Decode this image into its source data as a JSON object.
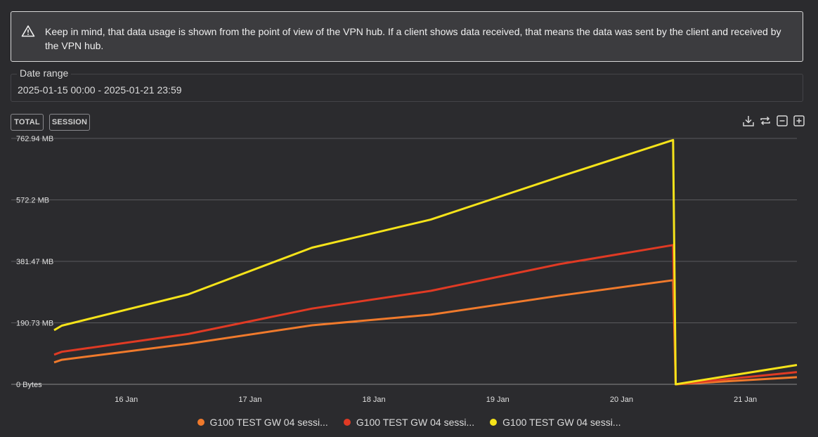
{
  "notice": {
    "text": "Keep in mind, that data usage is shown from the point of view of the VPN hub. If a client shows data received, that means the data was sent by the client and received by the VPN hub.",
    "icon": "warning-icon"
  },
  "date_range": {
    "label": "Date range",
    "value": "2025-01-15 00:00 - 2025-01-21 23:59"
  },
  "toolbar": {
    "total_label": "TOTAL",
    "session_label": "SESSION",
    "icons": [
      "download-icon",
      "reset-icon",
      "zoom-out-icon",
      "zoom-in-icon"
    ]
  },
  "chart_data": {
    "type": "line",
    "title": "",
    "xlabel": "",
    "ylabel": "",
    "x_ticks": [
      "16 Jan",
      "17 Jan",
      "18 Jan",
      "19 Jan",
      "20 Jan",
      "21 Jan"
    ],
    "y_ticks": [
      "0 Bytes",
      "190.73 MB",
      "381.47 MB",
      "572.2 MB",
      "762.94 MB"
    ],
    "ylim": [
      0,
      762.94
    ],
    "y_unit": "MB",
    "xlim": [
      "2025-01-15 10:00",
      "2025-01-21 10:00"
    ],
    "grid": true,
    "legend_position": "bottom",
    "series": [
      {
        "name": "G100 TEST GW 04 sessi...",
        "color": "#f07a2c",
        "points": [
          [
            "2025-01-15 10:00",
            68
          ],
          [
            "2025-01-15 11:30",
            76
          ],
          [
            "2025-01-16 12:00",
            126
          ],
          [
            "2025-01-17 12:00",
            183
          ],
          [
            "2025-01-18 11:00",
            216
          ],
          [
            "2025-01-19 12:00",
            275
          ],
          [
            "2025-01-20 10:00",
            323
          ],
          [
            "2025-01-20 10:30",
            0
          ],
          [
            "2025-01-21 10:00",
            22
          ]
        ]
      },
      {
        "name": "G100 TEST GW 04 sessi...",
        "color": "#e03a24",
        "points": [
          [
            "2025-01-15 10:00",
            92
          ],
          [
            "2025-01-15 11:30",
            101
          ],
          [
            "2025-01-16 12:00",
            156
          ],
          [
            "2025-01-17 12:00",
            235
          ],
          [
            "2025-01-18 11:00",
            290
          ],
          [
            "2025-01-19 12:00",
            373
          ],
          [
            "2025-01-20 10:00",
            432
          ],
          [
            "2025-01-20 10:30",
            0
          ],
          [
            "2025-01-21 10:00",
            38
          ]
        ]
      },
      {
        "name": "G100 TEST GW 04 sessi...",
        "color": "#f5e31a",
        "points": [
          [
            "2025-01-15 10:00",
            168
          ],
          [
            "2025-01-15 11:30",
            182
          ],
          [
            "2025-01-16 12:00",
            279
          ],
          [
            "2025-01-17 12:00",
            424
          ],
          [
            "2025-01-18 11:00",
            511
          ],
          [
            "2025-01-19 12:00",
            644
          ],
          [
            "2025-01-20 10:00",
            758
          ],
          [
            "2025-01-20 10:30",
            0
          ],
          [
            "2025-01-21 10:00",
            60
          ]
        ]
      }
    ]
  }
}
